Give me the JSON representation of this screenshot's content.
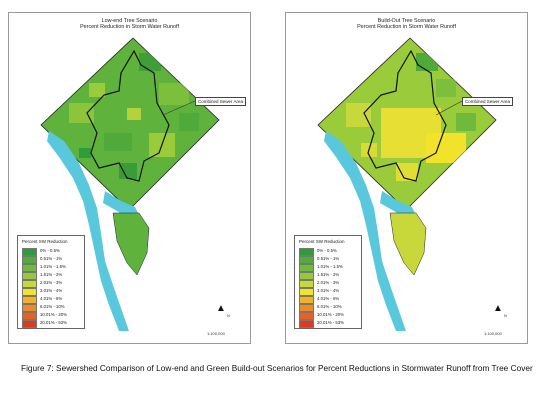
{
  "colors": {
    "water": "#5ac8dc",
    "boundary": "#111111",
    "ramp": [
      "#2e9c3a",
      "#4fae3a",
      "#6fba3a",
      "#98c93a",
      "#c8d83a",
      "#f2e22a",
      "#f5b02a",
      "#f08a24",
      "#e96020",
      "#e03a1e"
    ]
  },
  "panels": [
    {
      "title": "Low-end Tree Scenario",
      "subtitle": "Percent Reduction in Storm Water Runoff",
      "callout": "Combined Sewer Area",
      "legend_title": "Percent SW Reduction",
      "legend": [
        "0% - 0.5%",
        "0.51% - 1%",
        "1.01% - 1.5%",
        "1.51% - 2%",
        "2.01% - 3%",
        "3.01% - 4%",
        "4.01% - 6%",
        "6.01% - 10%",
        "10.01% - 20%",
        "20.01% - 53%"
      ],
      "scale": "1:100,000",
      "north": "N"
    },
    {
      "title": "Build-Out Tree Scenario",
      "subtitle": "Percent Reduction in Storm Water Runoff",
      "callout": "Combined Sewer Area",
      "legend_title": "Percent SW Reduction",
      "legend": [
        "0% - 0.5%",
        "0.51% - 1%",
        "1.01% - 1.5%",
        "1.51% - 2%",
        "2.01% - 3%",
        "3.01% - 4%",
        "4.01% - 6%",
        "6.01% - 10%",
        "10.01% - 20%",
        "20.01% - 53%"
      ],
      "scale": "1:100,000",
      "north": "N"
    }
  ],
  "caption": "Figure 7:  Sewershed Comparison of Low-end and Green Build-out Scenarios for Percent Reductions in Stormwater Runoff from Tree Cover"
}
